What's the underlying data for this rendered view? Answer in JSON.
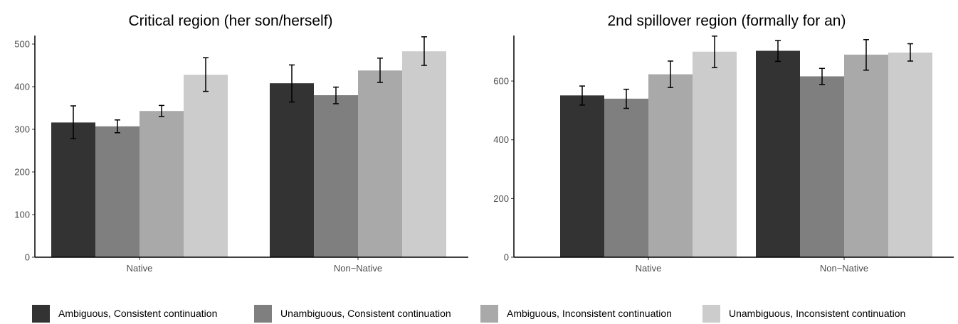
{
  "chart_data": [
    {
      "type": "bar",
      "title": "Critical region (her son/herself)",
      "xlabel": "",
      "ylabel": "",
      "categories": [
        "Native",
        "Non−Native"
      ],
      "ylim": [
        0,
        520
      ],
      "yticks": [
        0,
        100,
        200,
        300,
        400,
        500
      ],
      "grid": false,
      "series": [
        {
          "name": "Ambiguous, Consistent continuation",
          "color": "#333333",
          "values": [
            316,
            408
          ],
          "error_low": [
            278,
            364
          ],
          "error_high": [
            355,
            451
          ]
        },
        {
          "name": "Unambiguous, Consistent continuation",
          "color": "#7f7f7f",
          "values": [
            307,
            380
          ],
          "error_low": [
            292,
            360
          ],
          "error_high": [
            322,
            399
          ]
        },
        {
          "name": "Ambiguous, Inconsistent continuation",
          "color": "#a9a9a9",
          "values": [
            343,
            438
          ],
          "error_low": [
            330,
            410
          ],
          "error_high": [
            356,
            467
          ]
        },
        {
          "name": "Unambiguous, Inconsistent continuation",
          "color": "#cccccc",
          "values": [
            428,
            483
          ],
          "error_low": [
            389,
            450
          ],
          "error_high": [
            468,
            517
          ]
        }
      ]
    },
    {
      "type": "bar",
      "title": "2nd spillover region (formally for an)",
      "xlabel": "",
      "ylabel": "",
      "categories": [
        "Native",
        "Non−Native"
      ],
      "ylim": [
        0,
        755
      ],
      "yticks": [
        0,
        200,
        400,
        600
      ],
      "grid": false,
      "series": [
        {
          "name": "Ambiguous, Consistent continuation",
          "color": "#333333",
          "values": [
            551,
            703
          ],
          "error_low": [
            518,
            667
          ],
          "error_high": [
            583,
            738
          ]
        },
        {
          "name": "Unambiguous, Consistent continuation",
          "color": "#7f7f7f",
          "values": [
            540,
            616
          ],
          "error_low": [
            507,
            588
          ],
          "error_high": [
            572,
            643
          ]
        },
        {
          "name": "Ambiguous, Inconsistent continuation",
          "color": "#a9a9a9",
          "values": [
            623,
            690
          ],
          "error_low": [
            578,
            637
          ],
          "error_high": [
            668,
            741
          ]
        },
        {
          "name": "Unambiguous, Inconsistent continuation",
          "color": "#cccccc",
          "values": [
            700,
            697
          ],
          "error_low": [
            646,
            668
          ],
          "error_high": [
            753,
            727
          ]
        }
      ]
    }
  ],
  "legend": {
    "position": "bottom",
    "items": [
      {
        "label": "Ambiguous, Consistent continuation",
        "color": "#333333"
      },
      {
        "label": "Unambiguous, Consistent continuation",
        "color": "#7f7f7f"
      },
      {
        "label": "Ambiguous, Inconsistent continuation",
        "color": "#a9a9a9"
      },
      {
        "label": "Unambiguous, Inconsistent continuation",
        "color": "#cccccc"
      }
    ]
  }
}
